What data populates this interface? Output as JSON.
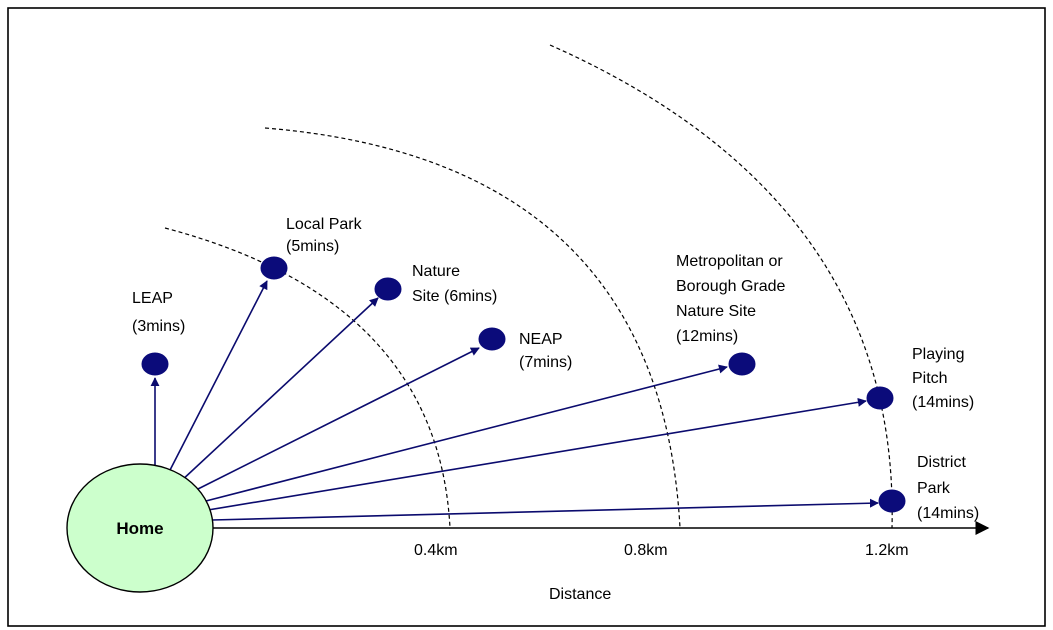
{
  "home": {
    "label": "Home"
  },
  "axis": {
    "title": "Distance",
    "ticks": [
      "0.4km",
      "0.8km",
      "1.2km"
    ]
  },
  "destinations": [
    {
      "key": "leap",
      "lines": [
        "LEAP",
        "(3mins)"
      ]
    },
    {
      "key": "local-park",
      "lines": [
        "Local Park",
        "(5mins)"
      ]
    },
    {
      "key": "nature-site",
      "lines": [
        "Nature",
        "Site (6mins)"
      ]
    },
    {
      "key": "neap",
      "lines": [
        "NEAP",
        "(7mins)"
      ]
    },
    {
      "key": "metropolitan-nature-site",
      "lines": [
        "Metropolitan or",
        "Borough Grade",
        "Nature Site",
        "(12mins)"
      ]
    },
    {
      "key": "playing-pitch",
      "lines": [
        "Playing",
        "Pitch",
        "(14mins)"
      ]
    },
    {
      "key": "district-park",
      "lines": [
        "District",
        "Park",
        "(14mins)"
      ]
    }
  ],
  "colors": {
    "home_fill": "#ccffcc",
    "dot_fill": "#0b0b7a",
    "arrow": "#0b0b6e"
  }
}
